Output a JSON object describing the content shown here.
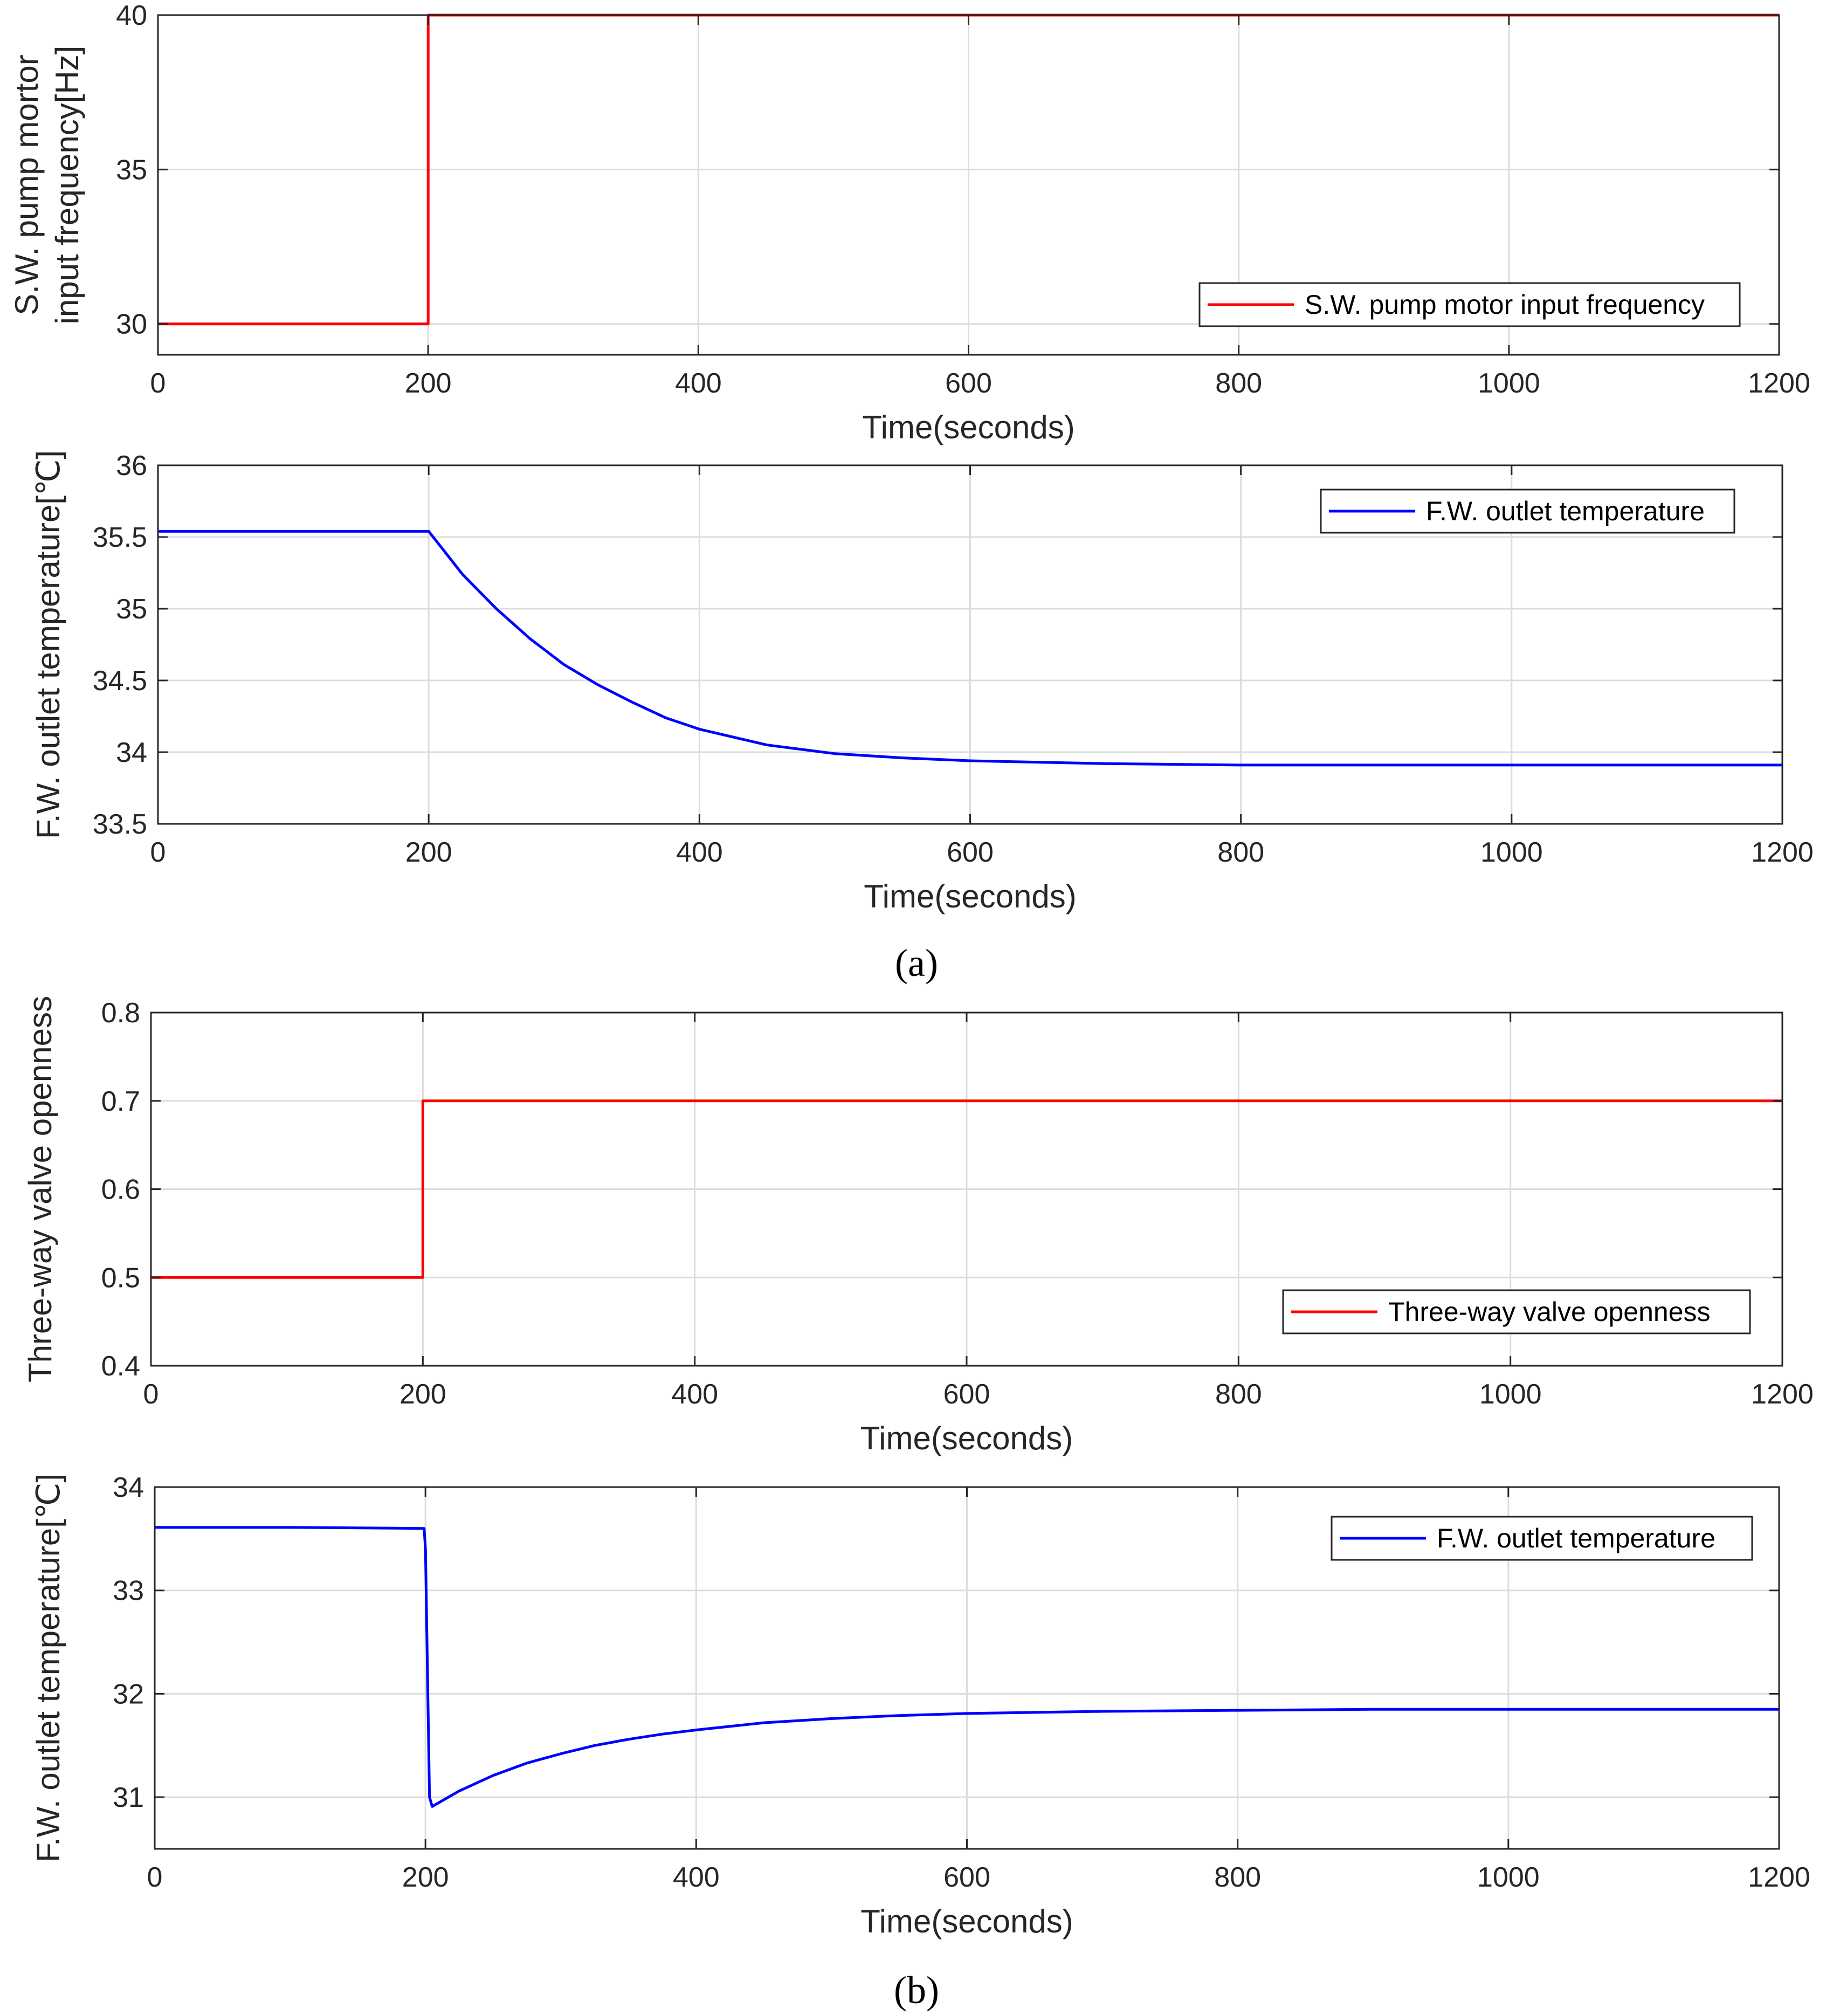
{
  "panel_labels": [
    "(a)",
    "(b)"
  ],
  "colors": {
    "red": "#ff0000",
    "blue": "#0000ff",
    "axis": "#262626",
    "grid": "#dcdcdc"
  },
  "chart_data": [
    {
      "type": "line",
      "xlabel": "Time(seconds)",
      "ylabel": [
        "S.W. pump mortor",
        "input frequency[Hz]"
      ],
      "xlim": [
        0,
        1200
      ],
      "ylim": [
        29,
        40
      ],
      "xticks": [
        0,
        200,
        400,
        600,
        800,
        1000,
        1200
      ],
      "yticks": [
        30,
        35,
        40
      ],
      "ytick_labels": [
        "30",
        "35",
        "40"
      ],
      "grid": true,
      "legend_position": "bottom-right",
      "series": [
        {
          "name": "S.W. pump motor input frequency",
          "color": "#ff0000",
          "x": [
            0,
            200,
            200,
            1200
          ],
          "y": [
            30,
            30,
            40,
            40
          ]
        }
      ]
    },
    {
      "type": "line",
      "xlabel": "Time(seconds)",
      "ylabel": [
        "F.W. outlet temperature[℃]"
      ],
      "xlim": [
        0,
        1200
      ],
      "ylim": [
        33.5,
        36
      ],
      "xticks": [
        0,
        200,
        400,
        600,
        800,
        1000,
        1200
      ],
      "yticks": [
        33.5,
        34,
        34.5,
        35,
        35.5,
        36
      ],
      "ytick_labels": [
        "33.5",
        "34",
        "34.5",
        "35",
        "35.5",
        "36"
      ],
      "grid": true,
      "legend_position": "top-right",
      "series": [
        {
          "name": "F.W. outlet temperature",
          "color": "#0000ff",
          "x": [
            0,
            100,
            200,
            225,
            250,
            275,
            300,
            325,
            350,
            375,
            400,
            450,
            500,
            550,
            600,
            700,
            800,
            900,
            1000,
            1100,
            1200
          ],
          "y": [
            35.54,
            35.54,
            35.54,
            35.24,
            35.0,
            34.79,
            34.61,
            34.47,
            34.35,
            34.24,
            34.16,
            34.05,
            33.99,
            33.96,
            33.94,
            33.92,
            33.91,
            33.91,
            33.91,
            33.91,
            33.91
          ]
        }
      ]
    },
    {
      "type": "line",
      "xlabel": "Time(seconds)",
      "ylabel": [
        "Three-way valve openness"
      ],
      "xlim": [
        0,
        1200
      ],
      "ylim": [
        0.4,
        0.8
      ],
      "xticks": [
        0,
        200,
        400,
        600,
        800,
        1000,
        1200
      ],
      "yticks": [
        0.4,
        0.5,
        0.6,
        0.7,
        0.8
      ],
      "ytick_labels": [
        "0.4",
        "0.5",
        "0.6",
        "0.7",
        "0.8"
      ],
      "grid": true,
      "legend_position": "bottom-right",
      "series": [
        {
          "name": "Three-way valve openness",
          "color": "#ff0000",
          "x": [
            0,
            200,
            200,
            1200
          ],
          "y": [
            0.5,
            0.5,
            0.7,
            0.7
          ]
        }
      ]
    },
    {
      "type": "line",
      "xlabel": "Time(seconds)",
      "ylabel": [
        "F.W. outlet temperature[℃]"
      ],
      "xlim": [
        0,
        1200
      ],
      "ylim": [
        30.5,
        34
      ],
      "xticks": [
        0,
        200,
        400,
        600,
        800,
        1000,
        1200
      ],
      "yticks": [
        31,
        32,
        33,
        34
      ],
      "ytick_labels": [
        "31",
        "32",
        "33",
        "34"
      ],
      "grid": true,
      "legend_position": "top-right",
      "series": [
        {
          "name": "F.W. outlet temperature",
          "color": "#0000ff",
          "x": [
            0,
            100,
            199,
            200,
            203,
            205,
            225,
            250,
            275,
            300,
            325,
            350,
            375,
            400,
            450,
            500,
            550,
            600,
            700,
            800,
            900,
            1000,
            1100,
            1200
          ],
          "y": [
            33.61,
            33.61,
            33.6,
            33.4,
            31.0,
            30.91,
            31.06,
            31.21,
            31.33,
            31.42,
            31.5,
            31.56,
            31.61,
            31.65,
            31.72,
            31.76,
            31.79,
            31.81,
            31.83,
            31.84,
            31.85,
            31.85,
            31.85,
            31.85
          ]
        }
      ]
    }
  ]
}
